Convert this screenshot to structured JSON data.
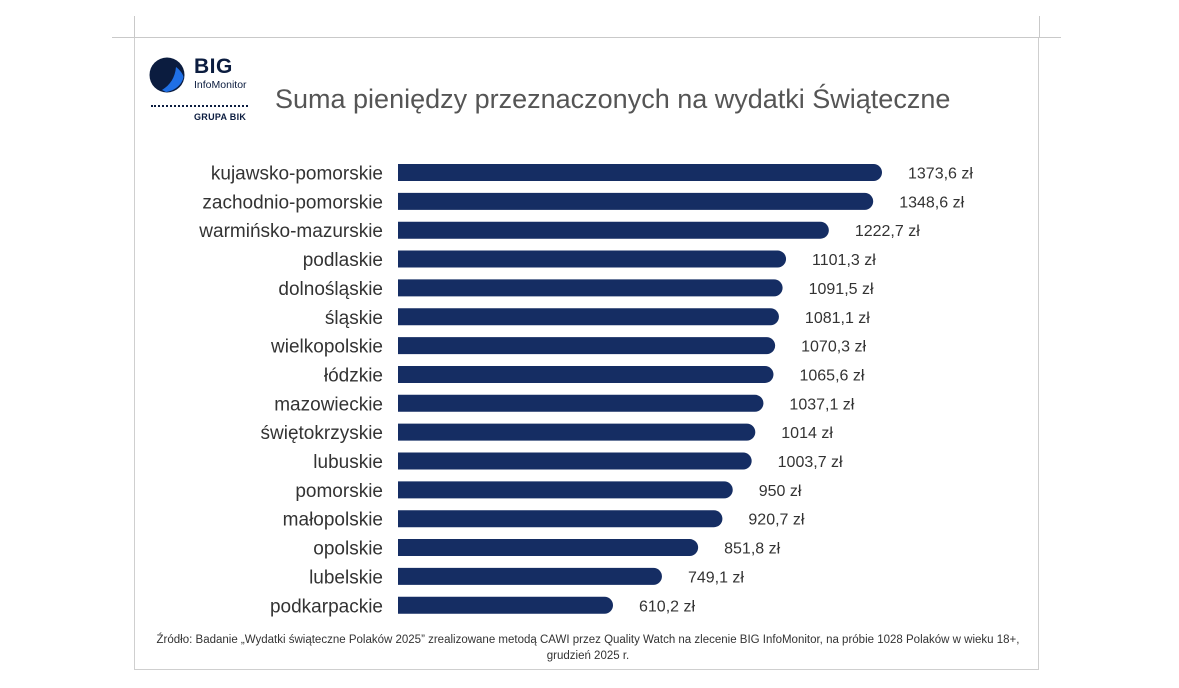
{
  "header": {
    "logo_big": "BIG",
    "logo_sub": "InfoMonitor",
    "logo_group": "GRUPA BIK"
  },
  "chart_data": {
    "type": "bar",
    "orientation": "horizontal",
    "title": "Suma pieniędzy przeznaczonych na wydatki Świąteczne",
    "categories": [
      "kujawsko-pomorskie",
      "zachodnio-pomorskie",
      "warmińsko-mazurskie",
      "podlaskie",
      "dolnośląskie",
      "śląskie",
      "wielkopolskie",
      "łódzkie",
      "mazowieckie",
      "świętokrzyskie",
      "lubuskie",
      "pomorskie",
      "małopolskie",
      "opolskie",
      "lubelskie",
      "podkarpackie"
    ],
    "values": [
      1373.6,
      1348.6,
      1222.7,
      1101.3,
      1091.5,
      1081.1,
      1070.3,
      1065.6,
      1037.1,
      1014,
      1003.7,
      950,
      920.7,
      851.8,
      749.1,
      610.2
    ],
    "value_labels": [
      "1373,6 zł",
      "1348,6 zł",
      "1222,7 zł",
      "1101,3 zł",
      "1091,5 zł",
      "1081,1 zł",
      "1070,3 zł",
      "1065,6 zł",
      "1037,1 zł",
      "1014 zł",
      "1003,7 zł",
      "950 zł",
      "920,7 zł",
      "851,8 zł",
      "749,1 zł",
      "610,2 zł"
    ],
    "xlim": [
      0,
      1373.6
    ],
    "bar_color": "#152d63",
    "grid": false,
    "legend": "none"
  },
  "footnote": "Źródło: Badanie „Wydatki świąteczne Polaków 2025” zrealizowane metodą CAWI przez Quality Watch na zlecenie BIG InfoMonitor, na próbie 1028 Polaków w wieku 18+, grudzień 2025 r."
}
